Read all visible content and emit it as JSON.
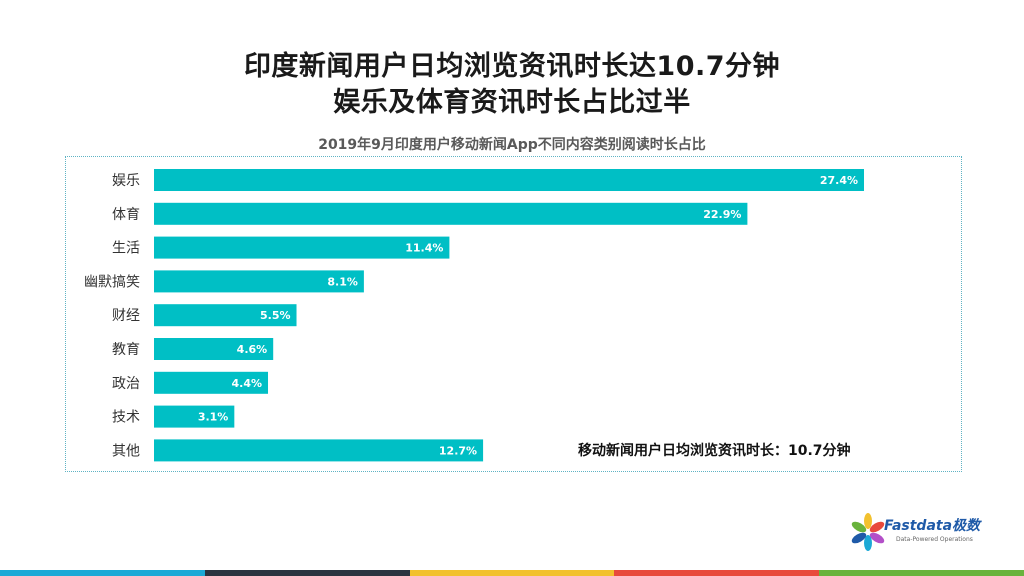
{
  "header": {
    "line1": "印度新闻用户日均浏览资讯时长达10.7分钟",
    "line2": "娱乐及体育资讯时长占比过半"
  },
  "chart_data": {
    "type": "bar",
    "orientation": "horizontal",
    "title": "2019年9月印度用户移动新闻App不同内容类别阅读时长占比",
    "categories": [
      "娱乐",
      "体育",
      "生活",
      "幽默搞笑",
      "财经",
      "教育",
      "政治",
      "技术",
      "其他"
    ],
    "values": [
      27.4,
      22.9,
      11.4,
      8.1,
      5.5,
      4.6,
      4.4,
      3.1,
      12.7
    ],
    "value_labels": [
      "27.4%",
      "22.9%",
      "11.4%",
      "8.1%",
      "5.5%",
      "4.6%",
      "4.4%",
      "3.1%",
      "12.7%"
    ],
    "unit": "%",
    "bar_color": "#00bfc5",
    "xlim": [
      0,
      30
    ],
    "grid": false,
    "legend": "none",
    "annotation": "移动新闻用户日均浏览资讯时长：10.7分钟"
  },
  "logo": {
    "name": "Fastdata极数",
    "tagline": "Data-Powered Operations"
  },
  "bottom_bar_colors": [
    "#1ca9d6",
    "#2b3440",
    "#f2c12e",
    "#e84a3c",
    "#69b33c"
  ]
}
